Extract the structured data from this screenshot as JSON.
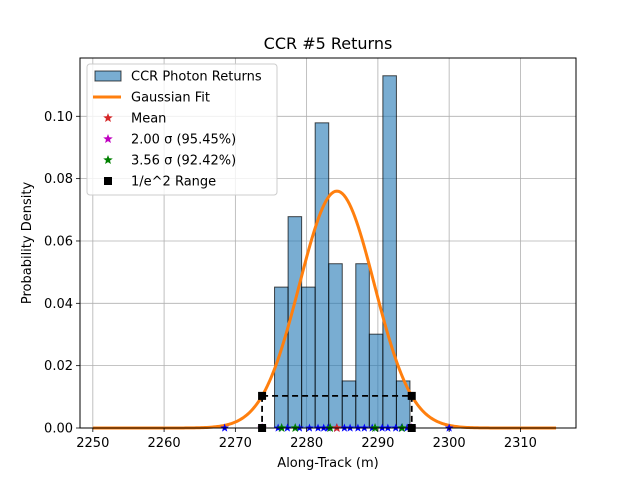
{
  "chart_data": {
    "type": "bar",
    "title": "CCR #5 Returns",
    "xlabel": "Along-Track (m)",
    "ylabel": "Probability Density",
    "xlim": [
      2248.2,
      2317.8
    ],
    "ylim": [
      0,
      0.1187
    ],
    "xticks": [
      2250,
      2260,
      2270,
      2280,
      2290,
      2300,
      2310
    ],
    "yticks": [
      0.0,
      0.02,
      0.04,
      0.06,
      0.08,
      0.1
    ],
    "grid": true,
    "legend_placement": "top-left",
    "colors": {
      "histogram": "#1f77b4",
      "fit": "#ff7f0e",
      "mean": "#d62728",
      "sigma2": "#c000c0",
      "sigma356": "#008000",
      "range": "#000000",
      "returns": "#0000ff"
    },
    "histogram": {
      "name": "CCR Photon Returns",
      "bin_edges": [
        2275.5,
        2277.4,
        2279.3,
        2281.2,
        2283.1,
        2285.0,
        2286.9,
        2288.8,
        2290.7,
        2292.6
      ],
      "values": [
        0.0452,
        0.0678,
        0.0452,
        0.0979,
        0.0527,
        0.0151,
        0.0527,
        0.0301,
        0.113
      ]
    },
    "extra_bar": {
      "x_range": [
        2292.6,
        2294.5
      ],
      "value": 0.0151
    },
    "gaussian_fit": {
      "name": "Gaussian Fit",
      "mean": 2284.25,
      "sigma": 5.25,
      "peak": 0.076,
      "x_range": [
        2250,
        2315
      ]
    },
    "mean_marker": {
      "name": "Mean",
      "x": 2284.25,
      "y": 0
    },
    "sigma2_markers": {
      "name": "2.00 σ (95.45%)",
      "x": [
        2273.75,
        2294.75
      ],
      "y": 0
    },
    "sigma356_markers": {
      "name": "3.56 σ (92.42%)",
      "x": [
        2276.5,
        2278.4,
        2283.3,
        2289.6,
        2293.4
      ],
      "y": 0
    },
    "range_markers": {
      "name": "1/e^2 Range",
      "x": [
        2273.75,
        2294.75
      ],
      "y_top": 0.0103
    },
    "photon_returns_x": [
      2268.5,
      2276.0,
      2277.3,
      2279.0,
      2280.4,
      2281.6,
      2282.4,
      2283.0,
      2284.2,
      2285.3,
      2286.1,
      2287.2,
      2288.1,
      2289.2,
      2290.6,
      2291.4,
      2292.5,
      2293.3,
      2294.1,
      2300.0
    ],
    "legend": [
      "CCR Photon Returns",
      "Gaussian Fit",
      "Mean",
      "2.00 σ (95.45%)",
      "3.56 σ (92.42%)",
      "1/e^2 Range"
    ]
  }
}
